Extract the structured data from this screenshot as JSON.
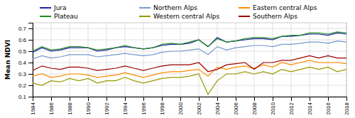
{
  "chart_data": {
    "type": "line",
    "y_label": "Mean NDVI",
    "x": [
      1984,
      1985,
      1986,
      1987,
      1988,
      1989,
      1990,
      1991,
      1992,
      1993,
      1994,
      1995,
      1996,
      1997,
      1998,
      1999,
      2000,
      2001,
      2002,
      2003,
      2004,
      2005,
      2006,
      2007,
      2008,
      2009,
      2010,
      2011,
      2012,
      2013,
      2014,
      2015,
      2016,
      2017,
      2018
    ],
    "series": [
      {
        "name": "Jura",
        "color": "#2222aa",
        "values": [
          0.49,
          0.53,
          0.5,
          0.51,
          0.53,
          0.53,
          0.53,
          0.5,
          0.51,
          0.53,
          0.54,
          0.53,
          0.52,
          0.53,
          0.55,
          0.56,
          0.56,
          0.57,
          0.6,
          0.54,
          0.62,
          0.58,
          0.59,
          0.6,
          0.61,
          0.61,
          0.6,
          0.63,
          0.63,
          0.64,
          0.65,
          0.65,
          0.64,
          0.66,
          0.65
        ]
      },
      {
        "name": "Northern Alps",
        "color": "#7799cc",
        "values": [
          0.43,
          0.46,
          0.44,
          0.45,
          0.47,
          0.47,
          0.47,
          0.45,
          0.46,
          0.47,
          0.48,
          0.47,
          0.46,
          0.47,
          0.49,
          0.5,
          0.5,
          0.51,
          0.52,
          0.47,
          0.54,
          0.51,
          0.53,
          0.54,
          0.55,
          0.55,
          0.54,
          0.56,
          0.56,
          0.57,
          0.58,
          0.58,
          0.57,
          0.59,
          0.58
        ]
      },
      {
        "name": "Eastern central Alps",
        "color": "#ff8c00",
        "values": [
          0.28,
          0.3,
          0.27,
          0.28,
          0.3,
          0.3,
          0.29,
          0.27,
          0.28,
          0.29,
          0.31,
          0.29,
          0.27,
          0.29,
          0.31,
          0.32,
          0.32,
          0.33,
          0.34,
          0.28,
          0.36,
          0.34,
          0.36,
          0.37,
          0.35,
          0.38,
          0.36,
          0.4,
          0.38,
          0.4,
          0.42,
          0.4,
          0.4,
          0.4,
          0.39
        ]
      },
      {
        "name": "Plateau",
        "color": "#228B22",
        "values": [
          0.5,
          0.54,
          0.51,
          0.52,
          0.54,
          0.54,
          0.53,
          0.51,
          0.52,
          0.53,
          0.55,
          0.53,
          0.52,
          0.53,
          0.56,
          0.57,
          0.56,
          0.58,
          0.6,
          0.54,
          0.61,
          0.58,
          0.59,
          0.61,
          0.62,
          0.62,
          0.61,
          0.63,
          0.64,
          0.64,
          0.66,
          0.66,
          0.65,
          0.67,
          0.66
        ]
      },
      {
        "name": "Western central Alps",
        "color": "#999900",
        "values": [
          0.22,
          0.2,
          0.24,
          0.23,
          0.26,
          0.24,
          0.26,
          0.22,
          0.24,
          0.24,
          0.27,
          0.24,
          0.22,
          0.24,
          0.26,
          0.27,
          0.27,
          0.28,
          0.3,
          0.12,
          0.24,
          0.3,
          0.3,
          0.32,
          0.3,
          0.32,
          0.3,
          0.34,
          0.32,
          0.34,
          0.36,
          0.34,
          0.36,
          0.32,
          0.34
        ]
      },
      {
        "name": "Southern Alps",
        "color": "#990000",
        "values": [
          0.33,
          0.37,
          0.35,
          0.34,
          0.36,
          0.36,
          0.35,
          0.33,
          0.34,
          0.35,
          0.37,
          0.35,
          0.33,
          0.35,
          0.37,
          0.38,
          0.38,
          0.38,
          0.4,
          0.32,
          0.34,
          0.38,
          0.39,
          0.4,
          0.34,
          0.4,
          0.4,
          0.42,
          0.42,
          0.44,
          0.46,
          0.44,
          0.46,
          0.44,
          0.44
        ]
      }
    ],
    "xlim": [
      1984,
      2018
    ],
    "xticks": [
      1984,
      1986,
      1988,
      1990,
      1992,
      1994,
      1996,
      1998,
      2000,
      2002,
      2004,
      2006,
      2008,
      2010,
      2012,
      2014,
      2016,
      2018
    ],
    "ylim": [
      0.1,
      0.75
    ],
    "yticks": [
      0.1,
      0.2,
      0.3,
      0.4,
      0.5,
      0.6,
      0.7
    ],
    "grid": true,
    "legend": "top"
  }
}
